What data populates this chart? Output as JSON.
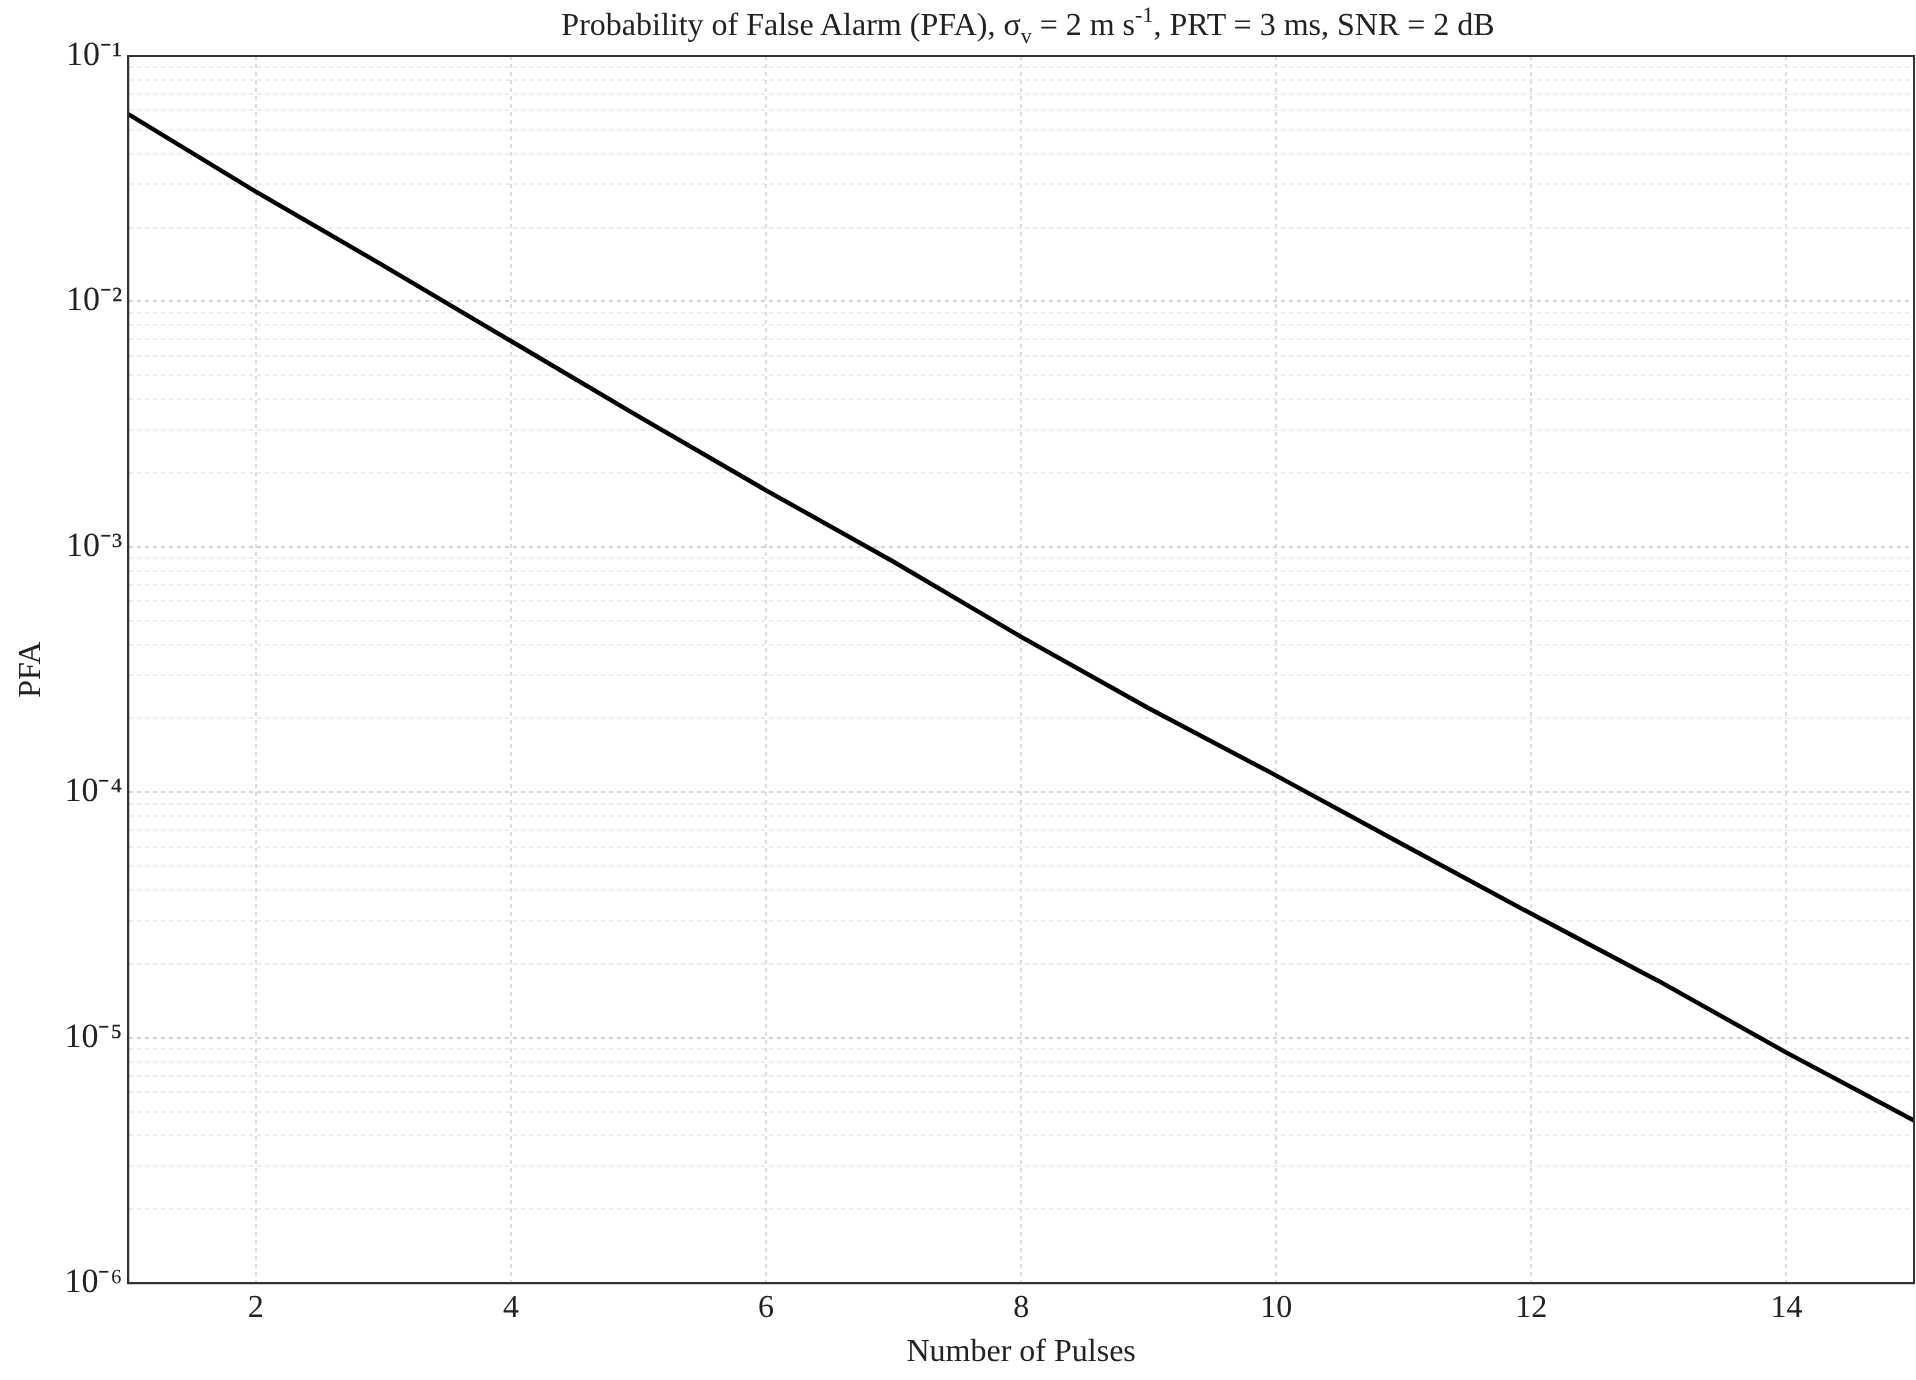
{
  "chart_data": {
    "type": "line",
    "title": "Probability of False Alarm (PFA), σ$_{v}$ = 2 m s$^{-1}$, PRT = 3 ms, SNR = 2 dB",
    "xlabel": "Number of Pulses",
    "ylabel": "PFA",
    "x": [
      1,
      2,
      3,
      4,
      5,
      6,
      7,
      8,
      9,
      10,
      11,
      12,
      13,
      14,
      15
    ],
    "series": [
      {
        "color": "#000000",
        "values": [
          0.058,
          0.028,
          0.014,
          0.0069,
          0.0034,
          0.0017,
          0.00087,
          0.00043,
          0.00022,
          0.000117,
          6.1e-05,
          3.2e-05,
          1.7e-05,
          8.7e-06,
          4.6e-06
        ]
      }
    ],
    "log": "y",
    "xlim": [
      1,
      15
    ],
    "xticks": [
      2,
      4,
      6,
      8,
      10,
      12,
      14
    ],
    "ylim": [
      1e-06,
      0.1
    ],
    "yticks": [
      {
        "value": 1e-06,
        "label": "10⁻⁶"
      },
      {
        "value": 2e-06,
        "label": null
      },
      {
        "value": 3e-06,
        "label": null
      },
      {
        "value": 4e-06,
        "label": null
      },
      {
        "value": 5e-06,
        "label": null
      },
      {
        "value": 6e-06,
        "label": null
      },
      {
        "value": 7e-06,
        "label": null
      },
      {
        "value": 8e-06,
        "label": null
      },
      {
        "value": 9e-06,
        "label": null
      },
      {
        "value": 1e-05,
        "label": "10⁻⁵"
      },
      {
        "value": 2e-05,
        "label": null
      },
      {
        "value": 3e-05,
        "label": null
      },
      {
        "value": 4e-05,
        "label": null
      },
      {
        "value": 5e-05,
        "label": null
      },
      {
        "value": 6e-05,
        "label": null
      },
      {
        "value": 7e-05,
        "label": null
      },
      {
        "value": 8e-05,
        "label": null
      },
      {
        "value": 9e-05,
        "label": null
      },
      {
        "value": 0.0001,
        "label": "10⁻⁴"
      },
      {
        "value": 0.0002,
        "label": null
      },
      {
        "value": 0.0003,
        "label": null
      },
      {
        "value": 0.0004,
        "label": null
      },
      {
        "value": 0.0005,
        "label": null
      },
      {
        "value": 0.0006,
        "label": null
      },
      {
        "value": 0.0007,
        "label": null
      },
      {
        "value": 0.0008,
        "label": null
      },
      {
        "value": 0.0009,
        "label": null
      },
      {
        "value": 0.001,
        "label": "10⁻³"
      },
      {
        "value": 0.002,
        "label": null
      },
      {
        "value": 0.003,
        "label": null
      },
      {
        "value": 0.004,
        "label": null
      },
      {
        "value": 0.005,
        "label": null
      },
      {
        "value": 0.006,
        "label": null
      },
      {
        "value": 0.007,
        "label": null
      },
      {
        "value": 0.008,
        "label": null
      },
      {
        "value": 0.009,
        "label": null
      },
      {
        "value": 0.01,
        "label": "10⁻²"
      },
      {
        "value": 0.02,
        "label": null
      },
      {
        "value": 0.03,
        "label": null
      },
      {
        "value": 0.04,
        "label": null
      },
      {
        "value": 0.05,
        "label": null
      },
      {
        "value": 0.06,
        "label": null
      },
      {
        "value": 0.07,
        "label": null
      },
      {
        "value": 0.08,
        "label": null
      },
      {
        "value": 0.09,
        "label": null
      },
      {
        "value": 0.1,
        "label": "10⁻¹"
      }
    ],
    "grid": true,
    "legend": false,
    "marker": "none",
    "line_style": "solid"
  }
}
